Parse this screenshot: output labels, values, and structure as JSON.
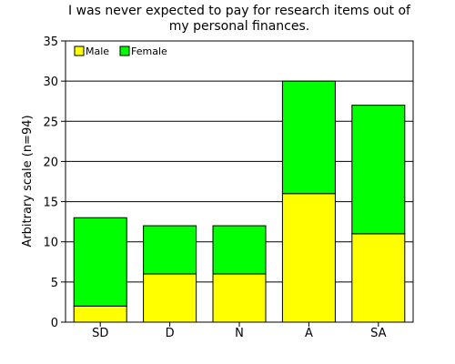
{
  "chart_data": {
    "type": "bar",
    "stacked": true,
    "title_lines": [
      "I was never expected to pay for research items out of",
      "my personal finances."
    ],
    "title": "I was never expected to pay for research items out of my personal finances.",
    "xlabel": "",
    "ylabel": "Arbitrary scale (n=94)",
    "categories": [
      "SD",
      "D",
      "N",
      "A",
      "SA"
    ],
    "series": [
      {
        "name": "Male",
        "color": "#ffff00",
        "values": [
          2,
          6,
          6,
          16,
          11
        ]
      },
      {
        "name": "Female",
        "color": "#00ff00",
        "values": [
          11,
          6,
          6,
          14,
          16
        ]
      }
    ],
    "ylim": [
      0,
      35
    ],
    "yticks": [
      0,
      5,
      10,
      15,
      20,
      25,
      30,
      35
    ],
    "grid": true,
    "legend_position": "top-left"
  }
}
